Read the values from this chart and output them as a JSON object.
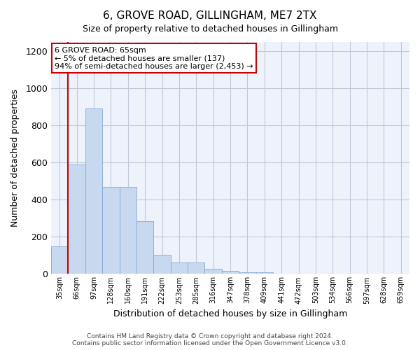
{
  "title": "6, GROVE ROAD, GILLINGHAM, ME7 2TX",
  "subtitle": "Size of property relative to detached houses in Gillingham",
  "xlabel": "Distribution of detached houses by size in Gillingham",
  "ylabel": "Number of detached properties",
  "bar_color": "#c8d8ef",
  "bar_edge_color": "#7eaadb",
  "vline_color": "#cc0000",
  "vline_x_index": 1,
  "categories": [
    "35sqm",
    "66sqm",
    "97sqm",
    "128sqm",
    "160sqm",
    "191sqm",
    "222sqm",
    "253sqm",
    "285sqm",
    "316sqm",
    "347sqm",
    "378sqm",
    "409sqm",
    "441sqm",
    "472sqm",
    "503sqm",
    "534sqm",
    "566sqm",
    "597sqm",
    "628sqm",
    "659sqm"
  ],
  "values": [
    150,
    590,
    890,
    470,
    470,
    285,
    105,
    63,
    63,
    28,
    18,
    10,
    10,
    0,
    0,
    0,
    0,
    0,
    0,
    0,
    0
  ],
  "ylim": [
    0,
    1250
  ],
  "yticks": [
    0,
    200,
    400,
    600,
    800,
    1000,
    1200
  ],
  "annotation_text": "6 GROVE ROAD: 65sqm\n← 5% of detached houses are smaller (137)\n94% of semi-detached houses are larger (2,453) →",
  "annotation_box_color": "#ffffff",
  "annotation_box_edge_color": "#cc0000",
  "footer_line1": "Contains HM Land Registry data © Crown copyright and database right 2024.",
  "footer_line2": "Contains public sector information licensed under the Open Government Licence v3.0.",
  "background_color": "#eef2fb",
  "grid_color": "#c0c8d8"
}
